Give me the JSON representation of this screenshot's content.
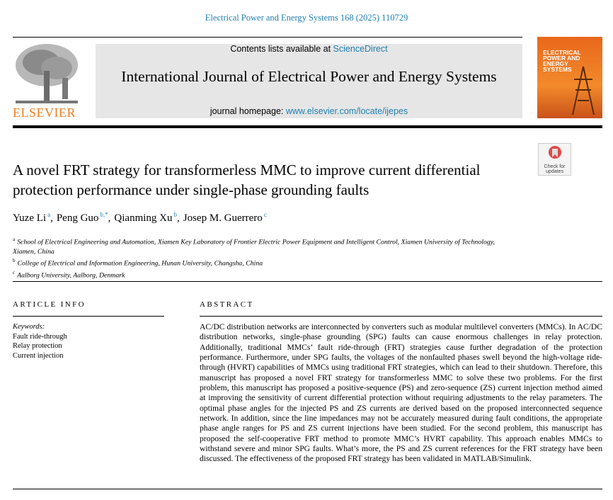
{
  "header": {
    "citation": "Electrical Power and Energy Systems 168 (2025) 110729",
    "contents_text": "Contents lists available at",
    "contents_link": "ScienceDirect",
    "journal": "International Journal of Electrical Power and Energy Systems",
    "homepage_label": "journal homepage:",
    "homepage_link": "www.elsevier.com/locate/ijepes",
    "publisher": "ELSEVIER",
    "cover_title": "ELECTRICAL POWER AND ENERGY SYSTEMS",
    "check_updates": "Check for updates"
  },
  "article": {
    "title": "A novel FRT strategy for transformerless MMC to improve current differential protection performance under single-phase grounding faults",
    "authors": [
      {
        "name": "Yuze Li",
        "affiliation": "a",
        "separator": ","
      },
      {
        "name": "Peng Guo",
        "affiliation": "b,*",
        "separator": ","
      },
      {
        "name": "Qianming Xu",
        "affiliation": "b",
        "separator": ","
      },
      {
        "name": "Josep M. Guerrero",
        "affiliation": "c"
      }
    ],
    "affiliations": [
      {
        "label": "a",
        "text": "School of Electrical Engineering and Automation, Xiamen Key Laboratory of Frontier Electric Power Equipment and Intelligent Control, Xiamen University of Technology, Xiamen, China"
      },
      {
        "label": "b",
        "text": "College of Electrical and Information Engineering, Hunan University, Changsha, China"
      },
      {
        "label": "c",
        "text": "Aalborg University, Aalborg, Denmark"
      }
    ]
  },
  "article_info": {
    "heading": "ARTICLE INFO",
    "keywords_label": "Keywords:",
    "keywords": [
      "Fault ride-through",
      "Relay protection",
      "Current injection"
    ]
  },
  "abstract": {
    "heading": "ABSTRACT",
    "text": "AC/DC distribution networks are interconnected by converters such as modular multilevel converters (MMCs). In AC/DC distribution networks, single-phase grounding (SPG) faults can cause enormous challenges in relay protection. Additionally, traditional MMCs’ fault ride-through (FRT) strategies cause further degradation of the protection performance. Furthermore, under SPG faults, the voltages of the nonfaulted phases swell beyond the high-voltage ride-through (HVRT) capabilities of MMCs using traditional FRT strategies, which can lead to their shutdown. Therefore, this manuscript has proposed a novel FRT strategy for transformerless MMC to solve these two problems. For the first problem, this manuscript has proposed a positive-sequence (PS) and zero-sequence (ZS) current injection method aimed at improving the sensitivity of current differential protection without requiring adjustments to the relay parameters. The optimal phase angles for the injected PS and ZS currents are derived based on the proposed interconnected sequence network. In addition, since the line impedances may not be accurately measured during fault conditions, the appropriate phase angle ranges for PS and ZS current in­jections have been studied. For the second problem, this manuscript has proposed the self-cooperative FRT method to promote MMC’s HVRT capability. This approach enables MMCs to withstand severe and minor SPG faults. What’s more, the PS and ZS current references for the FRT strategy have been discussed. The effectiveness of the proposed FRT strategy has been validated in MATLAB/Simulink."
  }
}
